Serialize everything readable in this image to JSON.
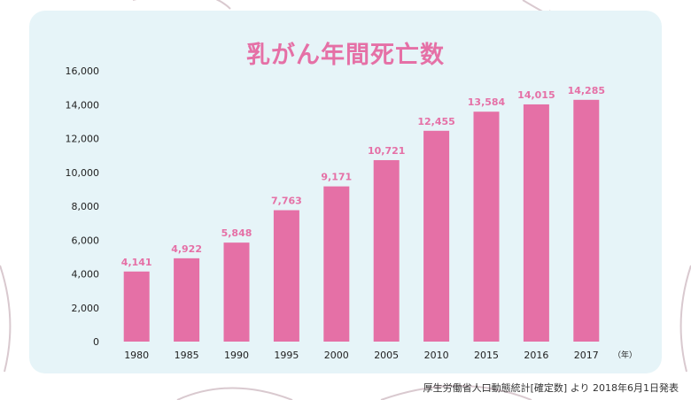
{
  "colors": {
    "bar": "#e570a6",
    "label": "#e570a6",
    "panel": "#e6f4f8",
    "axis_text": "#222222"
  },
  "chart_data": {
    "type": "bar",
    "title": "乳がん年間死亡数",
    "x_unit": "（年）",
    "categories": [
      "1980",
      "1985",
      "1990",
      "1995",
      "2000",
      "2005",
      "2010",
      "2015",
      "2016",
      "2017"
    ],
    "values": [
      4141,
      4922,
      5848,
      7763,
      9171,
      10721,
      12455,
      13584,
      14015,
      14285
    ],
    "value_labels": [
      "4,141",
      "4,922",
      "5,848",
      "7,763",
      "9,171",
      "10,721",
      "12,455",
      "13,584",
      "14,015",
      "14,285"
    ],
    "yticks": [
      0,
      2000,
      4000,
      6000,
      8000,
      10000,
      12000,
      14000,
      16000
    ],
    "ytick_labels": [
      "0",
      "2,000",
      "4,000",
      "6,000",
      "8,000",
      "10,000",
      "12,000",
      "14,000",
      "16,000"
    ],
    "ylim": [
      0,
      16000
    ],
    "grid": false,
    "legend": "none"
  },
  "source": "厚生労働省人口動態統計[確定数] より 2018年6月1日発表"
}
